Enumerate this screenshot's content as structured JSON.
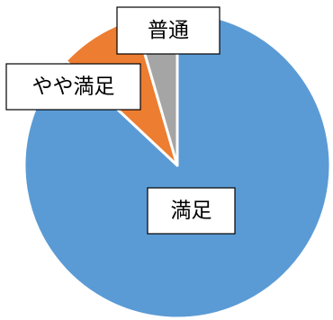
{
  "chart_data": {
    "type": "pie",
    "title": "",
    "slices": [
      {
        "label": "満足",
        "value": 87,
        "color": "#5b9bd5"
      },
      {
        "label": "やや満足",
        "value": 8.5,
        "color": "#ed7d31"
      },
      {
        "label": "普通",
        "value": 4.5,
        "color": "#a5a5a5"
      }
    ],
    "legend": "none",
    "data_labels": "category-name"
  }
}
